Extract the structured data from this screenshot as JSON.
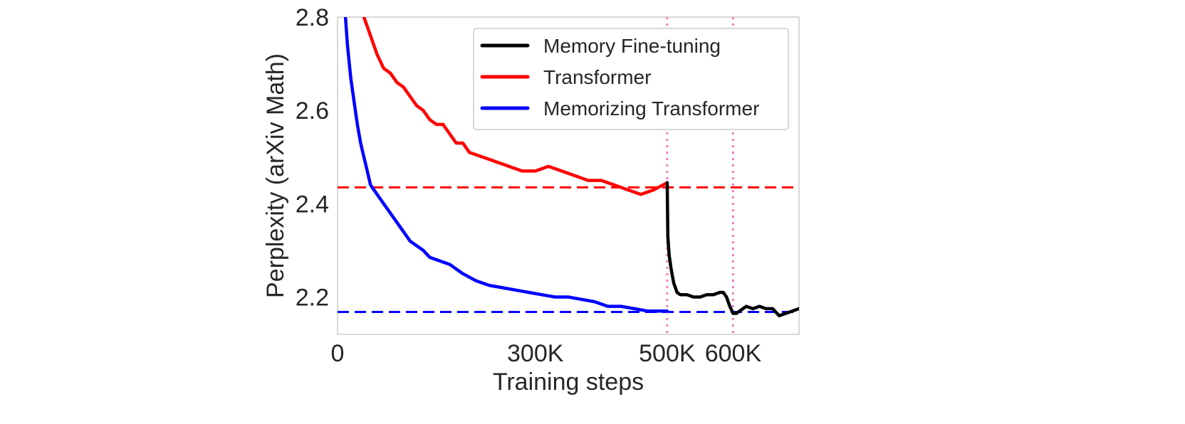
{
  "chart_data": {
    "type": "line",
    "xlabel": "Training steps",
    "ylabel": "Perplexity (arXiv Math)",
    "xlim": [
      0,
      700000
    ],
    "ylim": [
      2.12,
      2.8
    ],
    "x_ticks": [
      {
        "value": 0,
        "label": "0"
      },
      {
        "value": 300000,
        "label": "300K"
      },
      {
        "value": 500000,
        "label": "500K"
      },
      {
        "value": 600000,
        "label": "600K"
      }
    ],
    "y_ticks": [
      {
        "value": 2.2,
        "label": "2.2"
      },
      {
        "value": 2.4,
        "label": "2.4"
      },
      {
        "value": 2.6,
        "label": "2.6"
      },
      {
        "value": 2.8,
        "label": "2.8"
      }
    ],
    "grid": false,
    "legend_position": "top-right",
    "series": [
      {
        "name": "Memory Fine-tuning",
        "color": "#000000",
        "x": [
          500000,
          501000,
          503000,
          506000,
          510000,
          515000,
          520000,
          530000,
          540000,
          550000,
          560000,
          570000,
          580000,
          585000,
          590000,
          595000,
          600000,
          605000,
          610000,
          620000,
          630000,
          640000,
          650000,
          660000,
          670000,
          680000,
          690000,
          700000
        ],
        "y": [
          2.445,
          2.33,
          2.29,
          2.26,
          2.23,
          2.21,
          2.205,
          2.205,
          2.2,
          2.2,
          2.205,
          2.205,
          2.21,
          2.21,
          2.2,
          2.18,
          2.165,
          2.165,
          2.17,
          2.18,
          2.175,
          2.18,
          2.175,
          2.175,
          2.16,
          2.165,
          2.17,
          2.175
        ]
      },
      {
        "name": "Transformer",
        "color": "#ff0000",
        "x": [
          40000,
          45000,
          50000,
          60000,
          70000,
          80000,
          90000,
          100000,
          110000,
          120000,
          130000,
          140000,
          150000,
          160000,
          170000,
          180000,
          190000,
          200000,
          220000,
          240000,
          260000,
          280000,
          300000,
          320000,
          340000,
          360000,
          380000,
          400000,
          420000,
          440000,
          460000,
          480000,
          500000
        ],
        "y": [
          2.8,
          2.78,
          2.76,
          2.72,
          2.69,
          2.68,
          2.66,
          2.65,
          2.63,
          2.61,
          2.6,
          2.58,
          2.57,
          2.57,
          2.55,
          2.53,
          2.53,
          2.51,
          2.5,
          2.49,
          2.48,
          2.47,
          2.47,
          2.48,
          2.47,
          2.46,
          2.45,
          2.45,
          2.44,
          2.43,
          2.42,
          2.43,
          2.445
        ]
      },
      {
        "name": "Memorizing Transformer",
        "color": "#0000ff",
        "x": [
          12000,
          15000,
          20000,
          25000,
          30000,
          35000,
          40000,
          45000,
          50000,
          60000,
          70000,
          80000,
          90000,
          100000,
          110000,
          120000,
          130000,
          140000,
          150000,
          170000,
          190000,
          210000,
          230000,
          250000,
          270000,
          290000,
          310000,
          330000,
          350000,
          370000,
          390000,
          410000,
          430000,
          450000,
          470000,
          490000,
          500000
        ],
        "y": [
          2.8,
          2.74,
          2.67,
          2.62,
          2.57,
          2.53,
          2.5,
          2.47,
          2.44,
          2.42,
          2.4,
          2.38,
          2.36,
          2.34,
          2.32,
          2.31,
          2.3,
          2.285,
          2.28,
          2.27,
          2.25,
          2.235,
          2.225,
          2.22,
          2.215,
          2.21,
          2.205,
          2.2,
          2.2,
          2.195,
          2.19,
          2.18,
          2.18,
          2.175,
          2.17,
          2.17,
          2.17
        ]
      }
    ],
    "reference_lines": [
      {
        "orientation": "horizontal",
        "value": 2.435,
        "color": "#ff0000",
        "style": "dashed"
      },
      {
        "orientation": "horizontal",
        "value": 2.168,
        "color": "#0000ff",
        "style": "dashed"
      },
      {
        "orientation": "vertical",
        "value": 500000,
        "color": "#f080b8",
        "style": "dotted"
      },
      {
        "orientation": "vertical",
        "value": 600000,
        "color": "#f080b8",
        "style": "dotted"
      }
    ]
  }
}
